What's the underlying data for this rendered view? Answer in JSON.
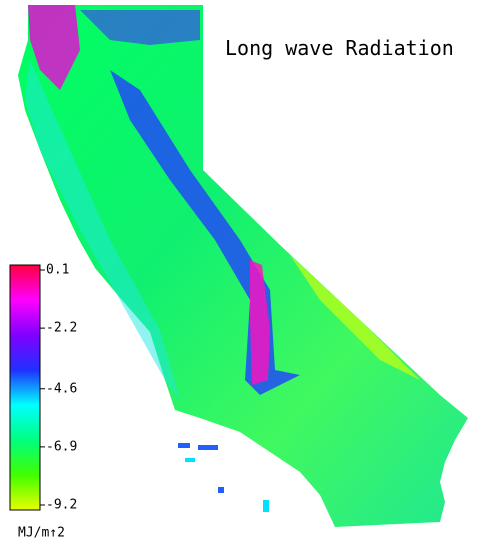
{
  "title": "Long wave Radiation",
  "colorbar": {
    "lim": [
      -9.2,
      0.1
    ],
    "ticks": [
      0.1,
      -2.2,
      -4.6,
      -6.9,
      -9.2
    ],
    "label": "MJ/m↑2",
    "colors": [
      "#e8ff00",
      "#40ff00",
      "#00ff80",
      "#00ffff",
      "#2030ff",
      "#8000ff",
      "#ff00ff",
      "#ff0040"
    ]
  }
}
